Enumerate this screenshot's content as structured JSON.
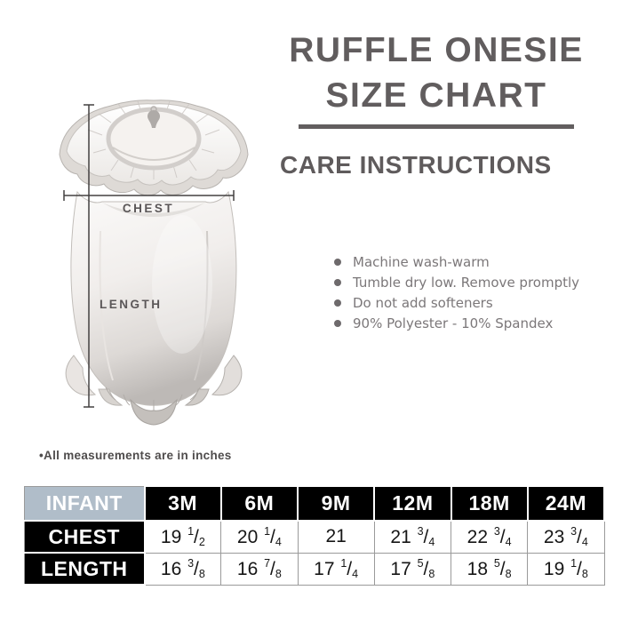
{
  "header": {
    "title_line1": "RUFFLE ONESIE",
    "title_line2": "SIZE CHART"
  },
  "care": {
    "heading": "CARE INSTRUCTIONS",
    "bullets": [
      "Machine wash-warm",
      "Tumble dry low. Remove promptly",
      "Do not add softeners",
      "90% Polyester - 10% Spandex"
    ]
  },
  "diagram": {
    "chest_label": "CHEST",
    "length_label": "LENGTH"
  },
  "note": "•All measurements are in inches",
  "chart_data": {
    "type": "table",
    "title": "Ruffle Onesie Size Chart",
    "units": "inches",
    "columns": [
      "INFANT",
      "3M",
      "6M",
      "9M",
      "12M",
      "18M",
      "24M"
    ],
    "rows": [
      {
        "label": "CHEST",
        "values": [
          "19 1/2",
          "20 1/4",
          "21",
          "21 3/4",
          "22 3/4",
          "23 3/4"
        ]
      },
      {
        "label": "LENGTH",
        "values": [
          "16 3/8",
          "16 7/8",
          "17 1/4",
          "17 5/8",
          "18 5/8",
          "19 1/8"
        ]
      }
    ]
  },
  "colors": {
    "title_gray": "#615d5e",
    "care_text": "#7b7779",
    "measure_line": "#434040",
    "table_black": "#000000",
    "infant_header_bg": "#b0bdc9",
    "table_border": "#9a9a9a"
  }
}
